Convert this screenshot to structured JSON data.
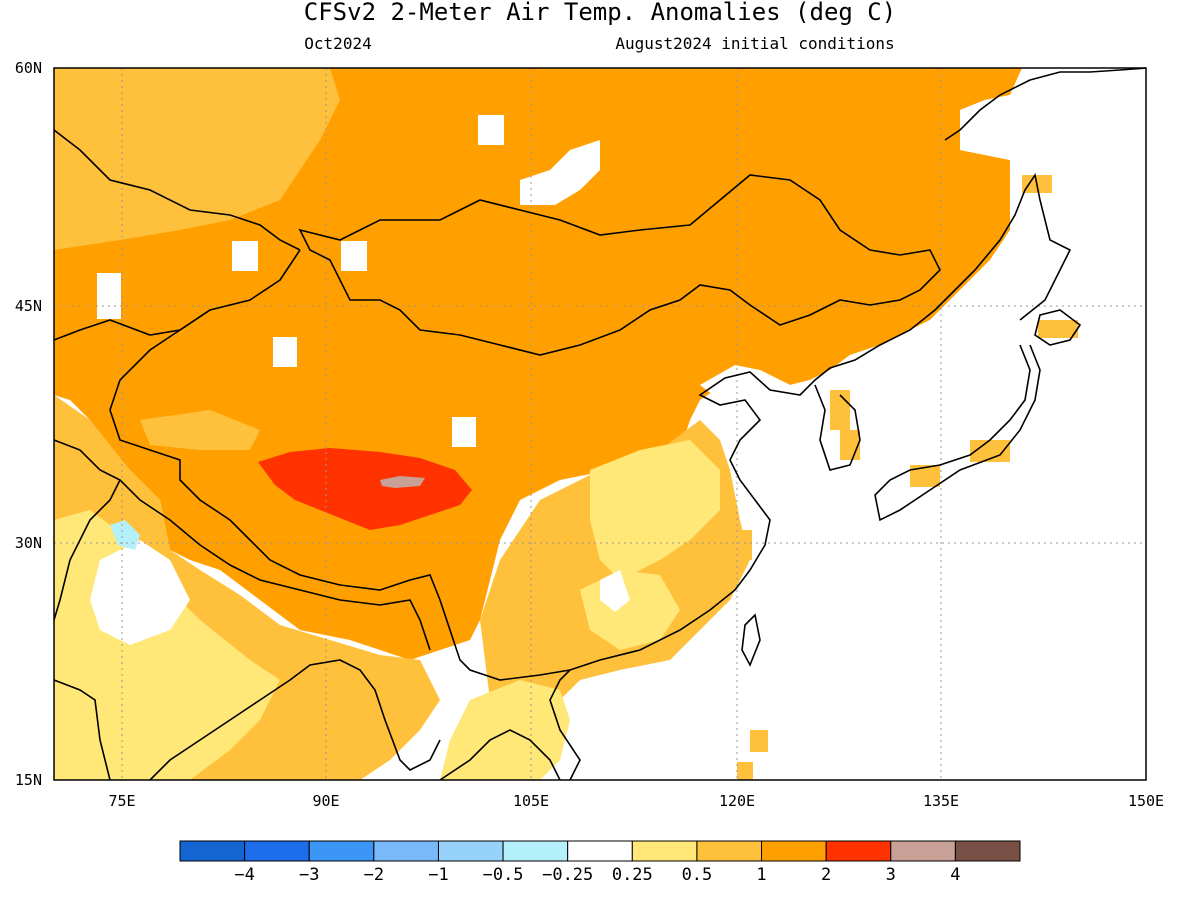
{
  "header": {
    "title": "CFSv2 2-Meter Air Temp. Anomalies (deg C)",
    "valid_month": "Oct2024",
    "init": "August2024 initial conditions"
  },
  "axes": {
    "lon_labels": [
      "75E",
      "90E",
      "105E",
      "120E",
      "135E",
      "150E"
    ],
    "lat_labels": [
      "60N",
      "45N",
      "30N",
      "15N"
    ]
  },
  "colorbar": {
    "colors": [
      "#1464d2",
      "#1e6eeb",
      "#3c96f5",
      "#78b9fa",
      "#96d2fa",
      "#b4f0fa",
      "#ffffff",
      "#ffe878",
      "#ffc03c",
      "#ffa000",
      "#ff3200",
      "#c8a096",
      "#785046"
    ],
    "labels": [
      "-4",
      "-3",
      "-2",
      "-1",
      "-0.5",
      "-0.25",
      "0.25",
      "0.5",
      "1",
      "2",
      "3",
      "4"
    ]
  },
  "palette": {
    "warm1": "#ffe878",
    "warm2": "#ffc03c",
    "warm3": "#ffa000",
    "hot": "#ff3200",
    "grey": "#c8a096",
    "cool": "#b4f0fa"
  }
}
